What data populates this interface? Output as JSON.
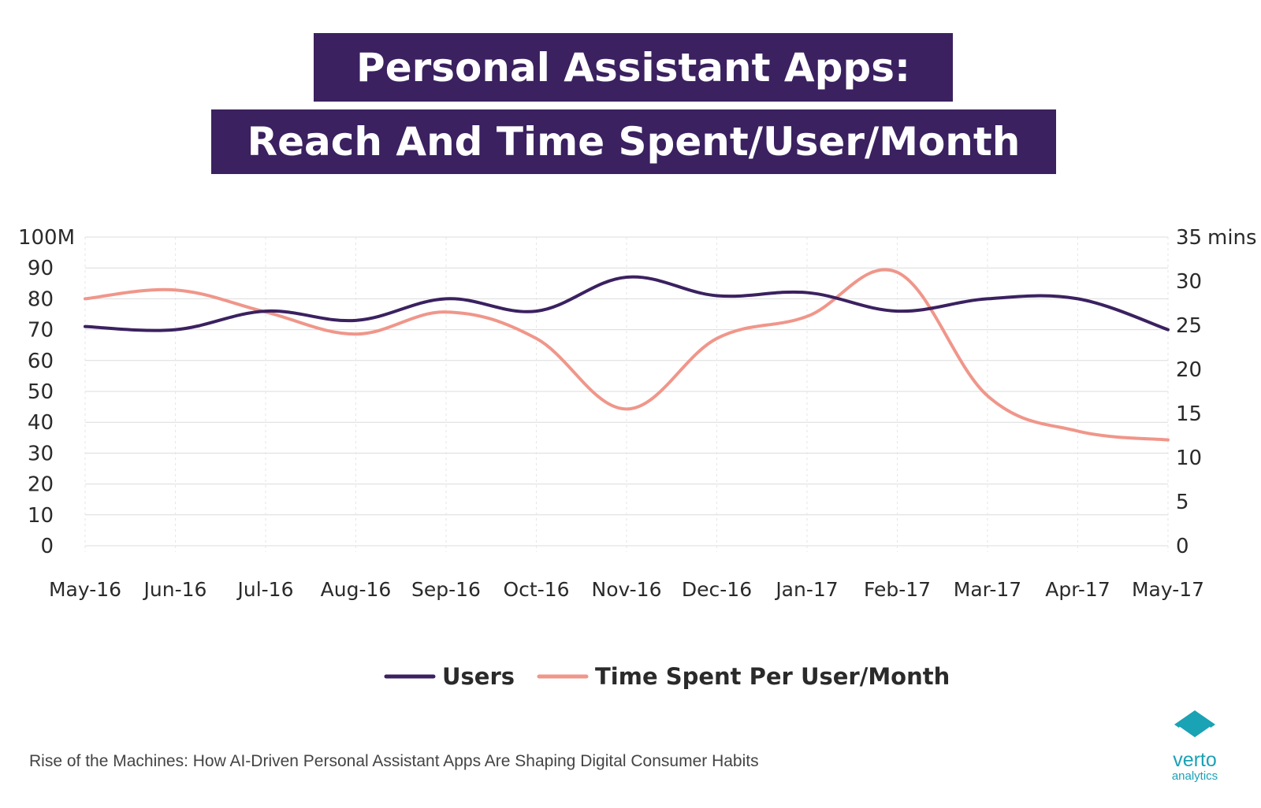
{
  "title": {
    "line1": "Personal Assistant Apps:",
    "line2": "Reach And Time Spent/User/Month"
  },
  "footer": "Rise of the Machines: How AI-Driven Personal Assistant Apps Are Shaping Digital Consumer Habits",
  "logo": {
    "word": "verto",
    "sub": "analytics"
  },
  "colors": {
    "title_bg": "#3b2160",
    "users": "#3b2160",
    "time": "#f0968a",
    "grid": "#dcdcdc",
    "logo": "#1aa2b5"
  },
  "chart_data": {
    "type": "line",
    "categories": [
      "May-16",
      "Jun-16",
      "Jul-16",
      "Aug-16",
      "Sep-16",
      "Oct-16",
      "Nov-16",
      "Dec-16",
      "Jan-17",
      "Feb-17",
      "Mar-17",
      "Apr-17",
      "May-17"
    ],
    "y_left": {
      "ylim": [
        0,
        100
      ],
      "ticks": [
        0,
        10,
        20,
        30,
        40,
        50,
        60,
        70,
        80,
        90,
        100
      ],
      "tick_labels": [
        "0",
        "10",
        "20",
        "30",
        "40",
        "50",
        "60",
        "70",
        "80",
        "90",
        "100M"
      ]
    },
    "y_right": {
      "ylim": [
        0,
        35
      ],
      "ticks": [
        0,
        5,
        10,
        15,
        20,
        25,
        30,
        35
      ],
      "tick_labels": [
        "0",
        "5",
        "10",
        "15",
        "20",
        "25",
        "30",
        "35"
      ],
      "unit": "mins"
    },
    "series": [
      {
        "name": "Users",
        "axis": "left",
        "color": "#3b2160",
        "values": [
          71,
          70,
          76,
          73,
          80,
          76,
          87,
          81,
          82,
          76,
          80,
          80,
          70
        ]
      },
      {
        "name": "Time Spent Per User/Month",
        "axis": "right",
        "color": "#f0968a",
        "values": [
          28,
          29,
          26.5,
          24,
          26.5,
          23.5,
          15.5,
          23.5,
          26,
          31,
          17,
          13,
          12
        ]
      }
    ],
    "legend": "bottom-center",
    "grid": true
  }
}
